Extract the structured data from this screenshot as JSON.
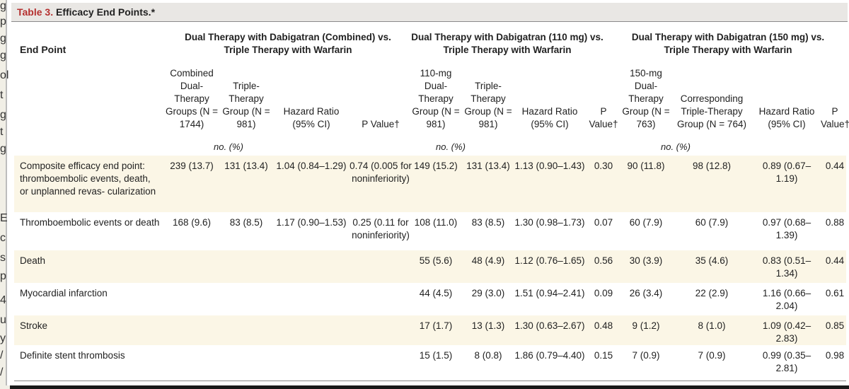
{
  "left_fragments": [
    "g",
    "p",
    "g",
    "g",
    "ol",
    "t",
    "g",
    "t",
    "g",
    "E",
    "c",
    "s",
    "p",
    "4",
    "u",
    "y",
    "/",
    "/"
  ],
  "table": {
    "title_number": "Table 3.",
    "title_text": " Efficacy End Points.*",
    "end_point_header": "End Point",
    "groups": [
      "Dual Therapy with Dabigatran (Combined) vs. Triple Therapy with Warfarin",
      "Dual Therapy with Dabigatran (110 mg) vs. Triple Therapy with Warfarin",
      "Dual Therapy with Dabigatran (150 mg) vs. Triple Therapy with Warfarin"
    ],
    "sub_headers": [
      "Combined Dual- Therapy Groups (N = 1744)",
      "Triple- Therapy Group (N = 981)",
      "Hazard Ratio (95% CI)",
      "P Value†",
      "110-mg Dual- Therapy Group (N = 981)",
      "Triple- Therapy Group (N = 981)",
      "Hazard Ratio (95% CI)",
      "P Value†",
      "150-mg Dual- Therapy Group (N = 763)",
      "Corresponding Triple-Therapy Group (N = 764)",
      "Hazard Ratio (95% CI)",
      "P Value†"
    ],
    "units_label": "no. (%)",
    "rows": [
      {
        "label": "Composite efficacy end point: thromboembolic events, death, or unplanned revas- cularization",
        "cells": [
          "239 (13.7)",
          "131 (13.4)",
          "1.04 (0.84–1.29)",
          "0.74 (0.005 for noninferiority)",
          "149 (15.2)",
          "131 (13.4)",
          "1.13 (0.90–1.43)",
          "0.30",
          "90 (11.8)",
          "98 (12.8)",
          "0.89 (0.67–1.19)",
          "0.44"
        ]
      },
      {
        "label": "Thromboembolic events or death",
        "cells": [
          "168 (9.6)",
          "83 (8.5)",
          "1.17 (0.90–1.53)",
          "0.25 (0.11 for noninferiority)",
          "108 (11.0)",
          "83 (8.5)",
          "1.30 (0.98–1.73)",
          "0.07",
          "60 (7.9)",
          "60 (7.9)",
          "0.97 (0.68–1.39)",
          "0.88"
        ]
      },
      {
        "label": "Death",
        "cells": [
          "",
          "",
          "",
          "",
          "55 (5.6)",
          "48 (4.9)",
          "1.12 (0.76–1.65)",
          "0.56",
          "30 (3.9)",
          "35 (4.6)",
          "0.83 (0.51–1.34)",
          "0.44"
        ]
      },
      {
        "label": "Myocardial infarction",
        "cells": [
          "",
          "",
          "",
          "",
          "44 (4.5)",
          "29 (3.0)",
          "1.51 (0.94–2.41)",
          "0.09",
          "26 (3.4)",
          "22 (2.9)",
          "1.16 (0.66–2.04)",
          "0.61"
        ]
      },
      {
        "label": "Stroke",
        "cells": [
          "",
          "",
          "",
          "",
          "17 (1.7)",
          "13 (1.3)",
          "1.30 (0.63–2.67)",
          "0.48",
          "9 (1.2)",
          "8 (1.0)",
          "1.09 (0.42–2.83)",
          "0.85"
        ]
      },
      {
        "label": "Definite stent thrombosis",
        "cells": [
          "",
          "",
          "",
          "",
          "15 (1.5)",
          "8 (0.8)",
          "1.86 (0.79–4.40)",
          "0.15",
          "7 (0.9)",
          "7 (0.9)",
          "0.99 (0.35–2.81)",
          "0.98"
        ]
      }
    ]
  },
  "colors": {
    "title_accent": "#b5302f",
    "row_shade": "#fbf6e6",
    "title_bar": "#e9e7e4"
  }
}
